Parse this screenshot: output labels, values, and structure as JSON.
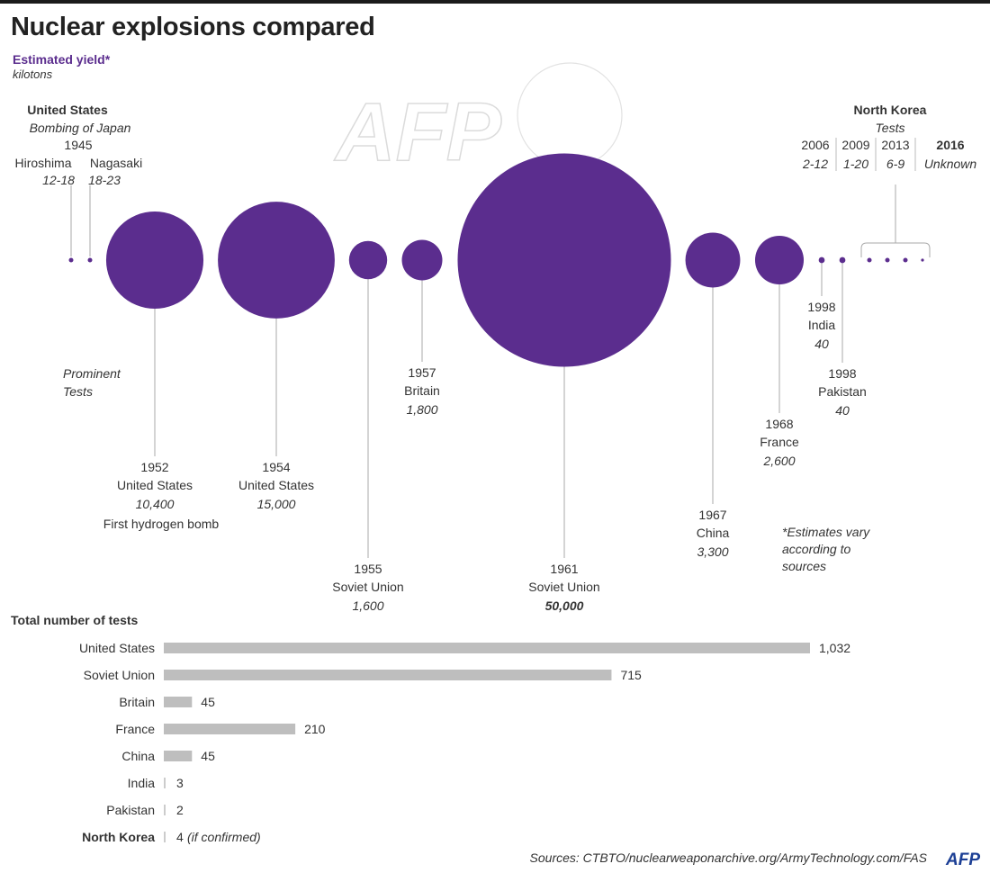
{
  "title": "Nuclear explosions compared",
  "subtitle": {
    "measure": "Estimated yield*",
    "unit": "kilotons"
  },
  "colors": {
    "accent": "#5b2d8e",
    "bar": "#bebebe",
    "text": "#333333",
    "topbar": "#1b1b1b"
  },
  "watermark": "AFP",
  "chart_data": [
    {
      "type": "bubble",
      "unit": "kilotons",
      "japan": {
        "country": "United States",
        "event": "Bombing of Japan",
        "year": "1945",
        "points": [
          {
            "name": "Hiroshima",
            "range": "12-18",
            "value": 15
          },
          {
            "name": "Nagasaki",
            "range": "18-23",
            "value": 20.5
          }
        ]
      },
      "prominent_label": [
        "Prominent",
        "Tests"
      ],
      "tests": [
        {
          "id": "us-1952",
          "year": "1952",
          "country": "United States",
          "yield_label": "10,400",
          "value": 10400,
          "note": "First hydrogen bomb"
        },
        {
          "id": "us-1954",
          "year": "1954",
          "country": "United States",
          "yield_label": "15,000",
          "value": 15000
        },
        {
          "id": "su-1955",
          "year": "1955",
          "country": "Soviet Union",
          "yield_label": "1,600",
          "value": 1600
        },
        {
          "id": "gb-1957",
          "year": "1957",
          "country": "Britain",
          "yield_label": "1,800",
          "value": 1800
        },
        {
          "id": "su-1961",
          "year": "1961",
          "country": "Soviet Union",
          "yield_label": "50,000",
          "value": 50000,
          "highlight": true
        },
        {
          "id": "cn-1967",
          "year": "1967",
          "country": "China",
          "yield_label": "3,300",
          "value": 3300
        },
        {
          "id": "fr-1968",
          "year": "1968",
          "country": "France",
          "yield_label": "2,600",
          "value": 2600
        },
        {
          "id": "in-1998",
          "year": "1998",
          "country": "India",
          "yield_label": "40",
          "value": 40
        },
        {
          "id": "pk-1998",
          "year": "1998",
          "country": "Pakistan",
          "yield_label": "40",
          "value": 40
        }
      ],
      "north_korea": {
        "country": "North Korea",
        "event": "Tests",
        "tests": [
          {
            "year": "2006",
            "range": "2-12",
            "value": 7
          },
          {
            "year": "2009",
            "range": "1-20",
            "value": 10.5
          },
          {
            "year": "2013",
            "range": "6-9",
            "value": 7.5
          },
          {
            "year": "2016",
            "range": "Unknown",
            "value": null
          }
        ]
      },
      "footnote": [
        "*Estimates vary",
        "according to",
        "sources"
      ]
    },
    {
      "type": "bar",
      "orientation": "horizontal",
      "title": "Total number of tests",
      "categories": [
        "United States",
        "Soviet Union",
        "Britain",
        "France",
        "China",
        "India",
        "Pakistan",
        "North Korea"
      ],
      "values": [
        1032,
        715,
        45,
        210,
        45,
        3,
        2,
        4
      ],
      "value_labels": [
        "1,032",
        "715",
        "45",
        "210",
        "45",
        "3",
        "2",
        "4"
      ],
      "annotations": {
        "North Korea": "(if confirmed)"
      }
    }
  ],
  "source": "Sources: CTBTO/nuclearweaponarchive.org/ArmyTechnology.com/FAS",
  "logo": "AFP"
}
